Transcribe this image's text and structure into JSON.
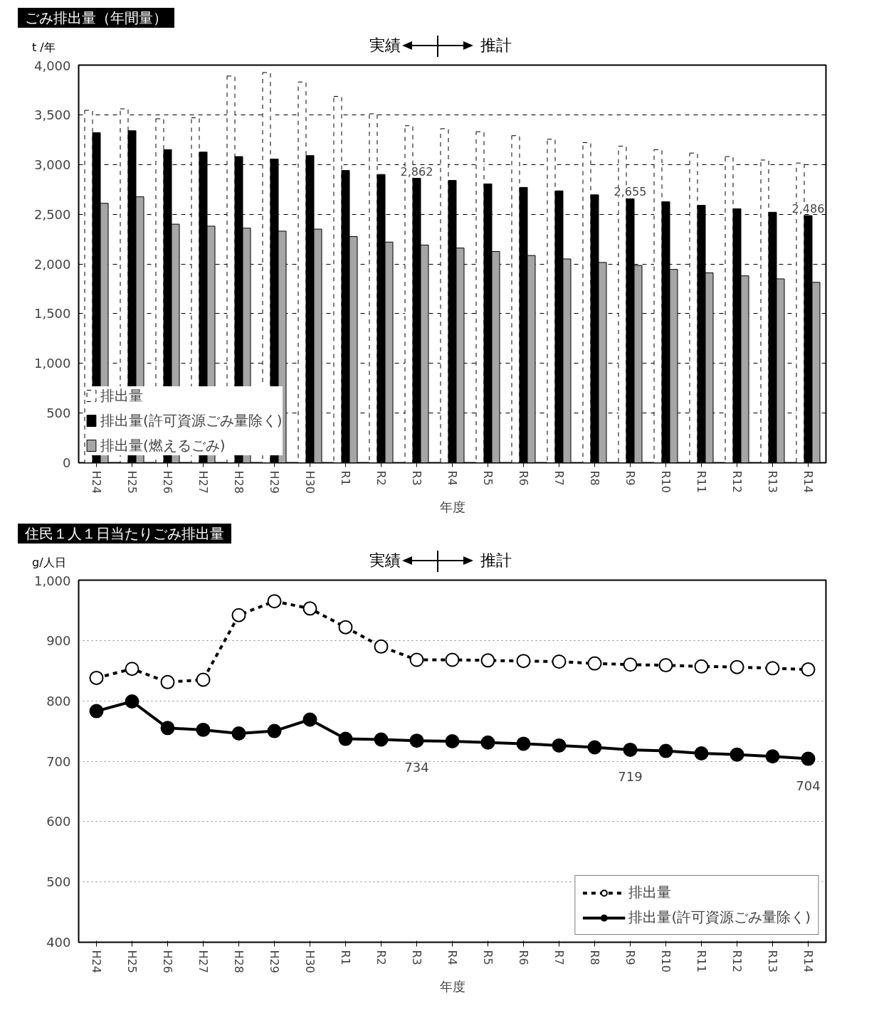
{
  "chart_data": [
    {
      "type": "bar",
      "title": "ごみ排出量（年間量）",
      "xlabel": "年度",
      "ylabel": "t /年",
      "categories": [
        "H24",
        "H25",
        "H26",
        "H27",
        "H28",
        "H29",
        "H30",
        "R1",
        "R2",
        "R3",
        "R4",
        "R5",
        "R6",
        "R7",
        "R8",
        "R9",
        "R10",
        "R11",
        "R12",
        "R13",
        "R14"
      ],
      "series": [
        {
          "name": "排出量",
          "color": "#ffffff",
          "line_style": "dashed",
          "values": [
            3545,
            3560,
            3460,
            3470,
            3890,
            3925,
            3830,
            3685,
            3510,
            3390,
            3360,
            3330,
            3290,
            3255,
            3220,
            3185,
            3150,
            3115,
            3080,
            3045,
            3015
          ]
        },
        {
          "name": "排出量(許可資源ごみ量除く)",
          "color": "#000000",
          "values": [
            3320,
            3340,
            3150,
            3125,
            3080,
            3055,
            3090,
            2940,
            2900,
            2862,
            2840,
            2805,
            2770,
            2735,
            2695,
            2655,
            2625,
            2590,
            2555,
            2520,
            2486
          ],
          "value_labels": [
            null,
            null,
            null,
            null,
            null,
            null,
            null,
            null,
            null,
            "2,862",
            null,
            null,
            null,
            null,
            null,
            "2,655",
            null,
            null,
            null,
            null,
            "2,486"
          ]
        },
        {
          "name": "排出量(燃えるごみ)",
          "color": "#a6a6a6",
          "values": [
            2610,
            2675,
            2400,
            2380,
            2360,
            2330,
            2350,
            2275,
            2220,
            2190,
            2160,
            2125,
            2085,
            2050,
            2015,
            1985,
            1945,
            1910,
            1880,
            1850,
            1815
          ]
        }
      ],
      "ylim": [
        0,
        4000
      ],
      "yticks": [
        0,
        500,
        {
          "value": 1000,
          "label": "1,000"
        },
        {
          "value": 1500,
          "label": "1,500"
        },
        {
          "value": 2000,
          "label": "2,000"
        },
        {
          "value": 2500,
          "label": "2,500"
        },
        {
          "value": 3000,
          "label": "3,000"
        },
        {
          "value": 3500,
          "label": "3,500"
        },
        {
          "value": 4000,
          "label": "4,000"
        }
      ],
      "grid": "y",
      "legend": "bottom left",
      "annotations": [
        "実績",
        "推計"
      ]
    },
    {
      "type": "line",
      "title": "住民１人１日当たりごみ排出量",
      "xlabel": "年度",
      "ylabel": "g/人日",
      "categories": [
        "H24",
        "H25",
        "H26",
        "H27",
        "H28",
        "H29",
        "H30",
        "R1",
        "R2",
        "R3",
        "R4",
        "R5",
        "R6",
        "R7",
        "R8",
        "R9",
        "R10",
        "R11",
        "R12",
        "R13",
        "R14"
      ],
      "series": [
        {
          "name": "排出量",
          "color": "#ffffff",
          "line_style": "dashed",
          "values": [
            838,
            853,
            831,
            835,
            942,
            965,
            953,
            922,
            890,
            868,
            868,
            867,
            866,
            865,
            862,
            860,
            859,
            857,
            856,
            854,
            852
          ]
        },
        {
          "name": "排出量(許可資源ごみ量除く)",
          "color": "#000000",
          "line_style": "solid",
          "values": [
            783,
            799,
            755,
            752,
            746,
            750,
            769,
            737,
            736,
            734,
            733,
            731,
            729,
            726,
            723,
            719,
            717,
            713,
            711,
            708,
            704
          ],
          "value_labels": [
            null,
            null,
            null,
            null,
            null,
            null,
            null,
            null,
            null,
            "734",
            null,
            null,
            null,
            null,
            null,
            "719",
            null,
            null,
            null,
            null,
            "704"
          ]
        }
      ],
      "marker": "circle",
      "ylim": [
        400,
        1000
      ],
      "yticks": [
        400,
        500,
        600,
        700,
        800,
        900,
        {
          "value": 1000,
          "label": "1,000"
        }
      ],
      "grid": "y",
      "legend": "bottom right",
      "annotations": [
        "実績",
        "推計"
      ]
    }
  ]
}
